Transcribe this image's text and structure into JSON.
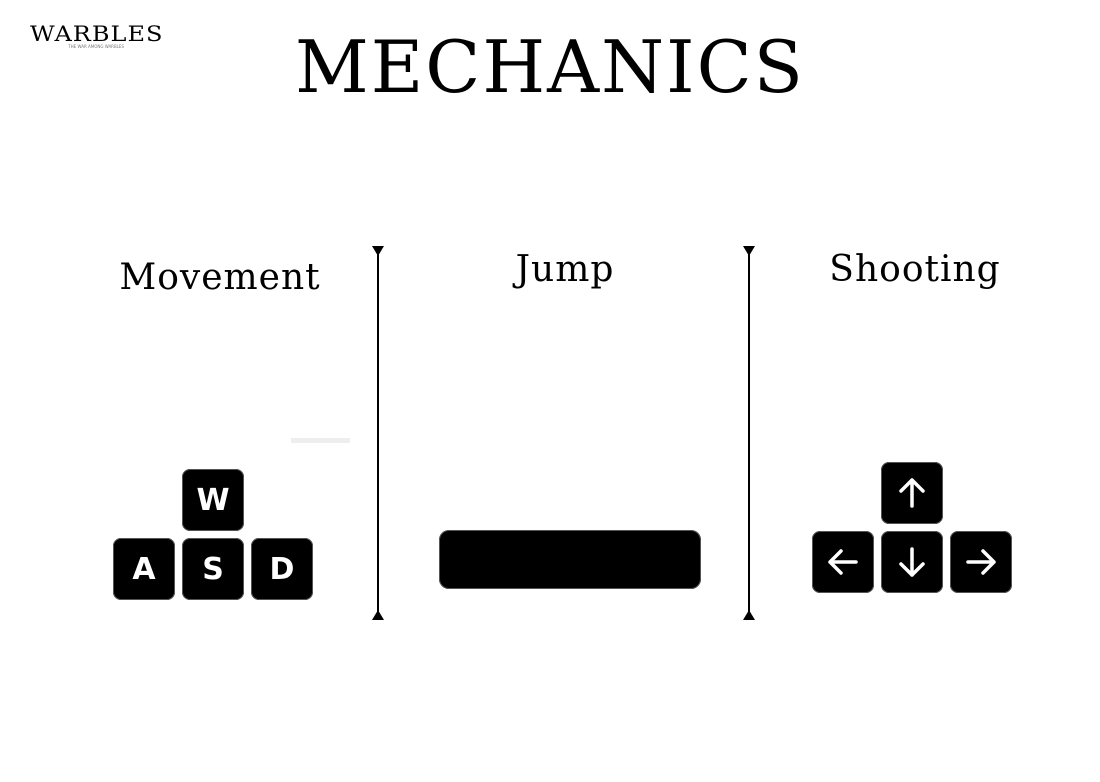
{
  "logo": {
    "name": "WARBLES",
    "tagline": "THE WAR AMONG WARBLES"
  },
  "title": "MECHANICS",
  "sections": {
    "movement": {
      "heading": "Movement",
      "keys": {
        "w": "W",
        "a": "A",
        "s": "S",
        "d": "D"
      }
    },
    "jump": {
      "heading": "Jump",
      "keys": {
        "space": ""
      }
    },
    "shooting": {
      "heading": "Shooting",
      "keys": {
        "up": "arrow-up-icon",
        "left": "arrow-left-icon",
        "down": "arrow-down-icon",
        "right": "arrow-right-icon"
      }
    }
  }
}
